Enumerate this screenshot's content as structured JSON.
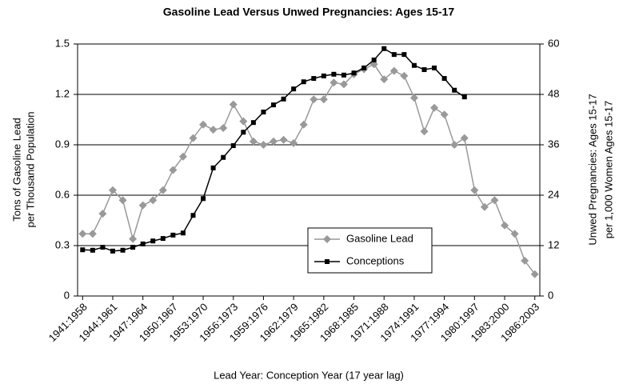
{
  "chart_data": {
    "type": "line",
    "title": "Gasoline Lead Versus Unwed Pregnancies: Ages 15-17",
    "xlabel": "Lead Year: Conception Year (17 year lag)",
    "ylabel": [
      "Tons of Gasoline Lead",
      "per Thousand Population"
    ],
    "y2label": [
      "Unwed Pregnancies: Ages 15-17",
      "per 1,000 Women Ages 15-17"
    ],
    "categories": [
      "1941:1958",
      null,
      null,
      "1944:1961",
      null,
      null,
      "1947:1964",
      null,
      null,
      "1950:1967",
      null,
      null,
      "1953:1970",
      null,
      null,
      "1956:1973",
      null,
      null,
      "1959:1976",
      null,
      null,
      "1962:1979",
      null,
      null,
      "1965:1982",
      null,
      null,
      "1968:1985",
      null,
      null,
      "1971:1988",
      null,
      null,
      "1974:1991",
      null,
      null,
      "1977:1994",
      null,
      null,
      "1980:1997",
      null,
      null,
      "1983:2000",
      null,
      null,
      "1986:2003"
    ],
    "ylim": [
      0,
      1.5
    ],
    "yticks": [
      0,
      0.3,
      0.6,
      0.9,
      1.2,
      1.5
    ],
    "y2lim": [
      0,
      60
    ],
    "y2ticks": [
      0,
      12,
      24,
      36,
      48,
      60
    ],
    "grid": true,
    "series": [
      {
        "name": "Gasoline Lead",
        "color": "#999999",
        "marker": "diamond",
        "values": [
          0.37,
          0.37,
          0.49,
          0.63,
          0.57,
          0.34,
          0.54,
          0.57,
          0.63,
          0.75,
          0.83,
          0.94,
          1.02,
          0.99,
          1.0,
          1.14,
          1.04,
          0.92,
          0.9,
          0.92,
          0.93,
          0.91,
          1.02,
          1.17,
          1.17,
          1.27,
          1.26,
          1.32,
          1.35,
          1.38,
          1.29,
          1.34,
          1.31,
          1.18,
          0.98,
          1.12,
          1.08,
          0.9,
          0.94,
          0.63,
          0.53,
          0.57,
          0.42,
          0.37,
          0.21,
          0.13
        ]
      },
      {
        "name": "Conceptions",
        "color": "#000000",
        "marker": "square",
        "axis": "y2",
        "values": [
          11.0,
          10.9,
          11.6,
          10.7,
          10.9,
          11.6,
          12.4,
          13.1,
          13.7,
          14.5,
          15.0,
          19.2,
          23.2,
          30.5,
          33.0,
          35.8,
          39.0,
          41.3,
          43.8,
          45.5,
          46.9,
          49.3,
          51.0,
          51.8,
          52.4,
          52.8,
          52.6,
          53.1,
          54.3,
          56.2,
          58.9,
          57.5,
          57.5,
          54.9,
          53.9,
          54.3,
          51.8,
          49.0,
          47.4,
          null,
          null,
          null,
          null,
          null,
          null,
          null
        ]
      }
    ]
  }
}
